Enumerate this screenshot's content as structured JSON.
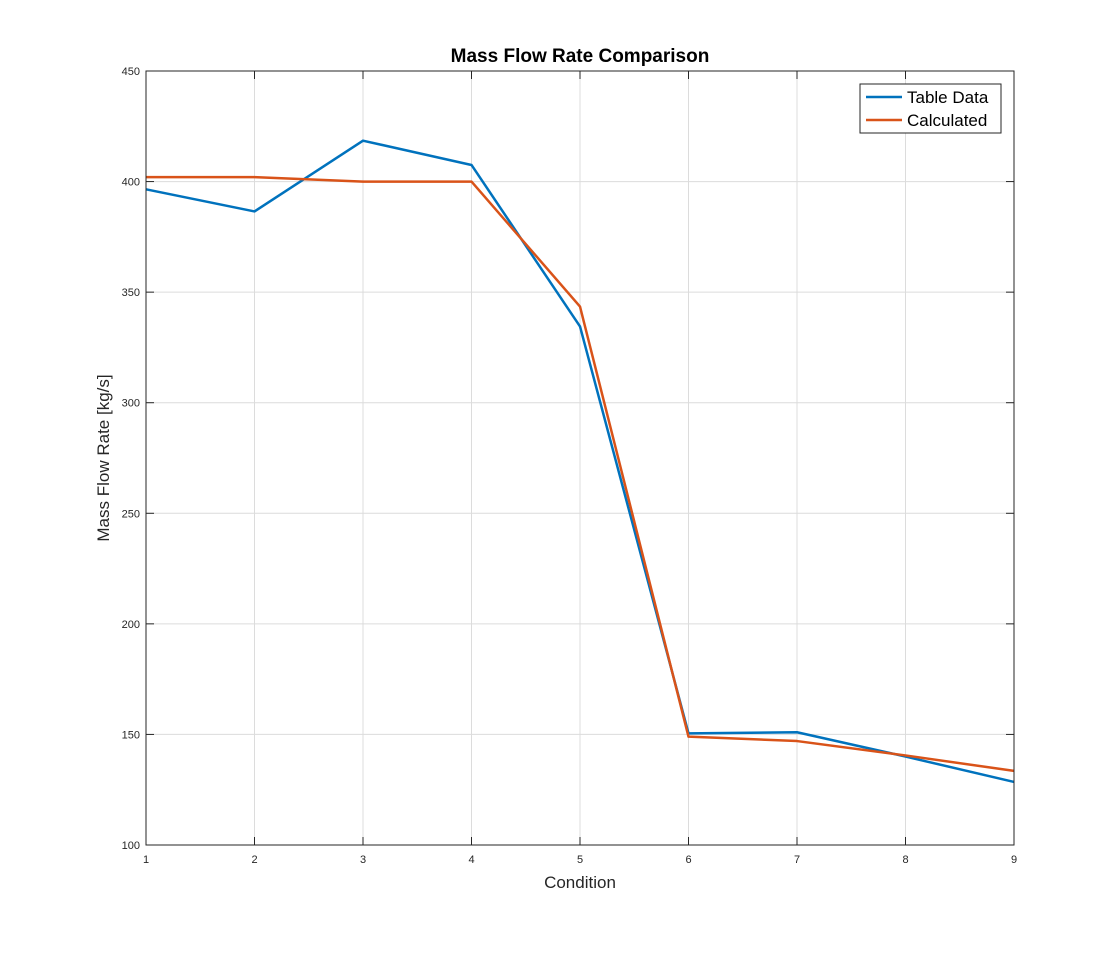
{
  "chart_data": {
    "type": "line",
    "title": "Mass Flow Rate Comparison",
    "xlabel": "Condition",
    "ylabel": "Mass Flow Rate [kg/s]",
    "xlim": [
      1,
      9
    ],
    "ylim": [
      100,
      450
    ],
    "xticks": [
      1,
      2,
      3,
      4,
      5,
      6,
      7,
      8,
      9
    ],
    "yticks": [
      100,
      150,
      200,
      250,
      300,
      350,
      400,
      450
    ],
    "grid": true,
    "legend_position": "top-right",
    "x": [
      1,
      2,
      3,
      4,
      5,
      6,
      7,
      8,
      9
    ],
    "series": [
      {
        "name": "Table Data",
        "color": "#0072BD",
        "values": [
          396.5,
          386.5,
          418.5,
          407.5,
          334.5,
          150.5,
          151.0,
          140.0,
          128.5
        ]
      },
      {
        "name": "Calculated",
        "color": "#D95319",
        "values": [
          402.0,
          402.0,
          400.0,
          400.0,
          343.5,
          149.0,
          147.0,
          140.5,
          133.5
        ]
      }
    ]
  }
}
